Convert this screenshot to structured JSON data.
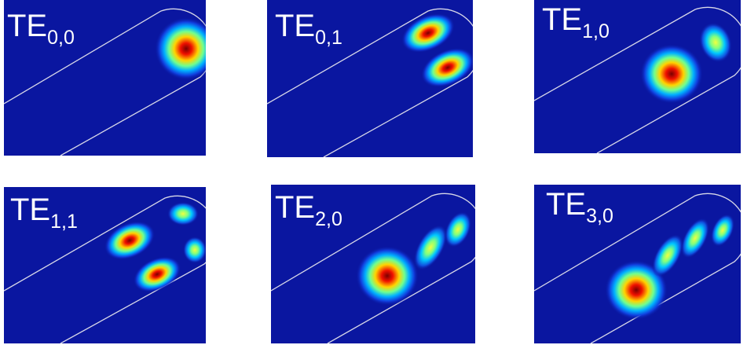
{
  "panels": [
    {
      "label": {
        "base": "TE",
        "sub": "0,0"
      }
    },
    {
      "label": {
        "base": "TE",
        "sub": "0,1"
      }
    },
    {
      "label": {
        "base": "TE",
        "sub": "1,0"
      }
    },
    {
      "label": {
        "base": "TE",
        "sub": "1,1"
      }
    },
    {
      "label": {
        "base": "TE",
        "sub": "2,0"
      }
    },
    {
      "label": {
        "base": "TE",
        "sub": "3,0"
      }
    }
  ]
}
